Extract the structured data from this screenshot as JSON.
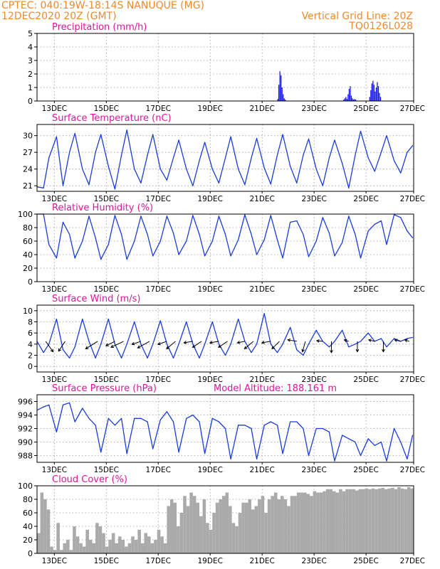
{
  "header": {
    "line1_left": "CPTEC:   040:19W-18:14S   NANUQUE (MG)",
    "line2_left": "12DEC2020 20Z (GMT)",
    "line1_right": "Vertical Grid Line: 20Z",
    "line2_right": "TQ0126L028"
  },
  "chart_data": [
    {
      "id": "precipitation",
      "type": "bar",
      "title": "Precipitation (mm/h)",
      "x_unit": "hours since 12DEC2020 20Z",
      "xlim": [
        0,
        348
      ],
      "ylim": [
        0,
        5
      ],
      "yticks": [
        0,
        1,
        2,
        3,
        4,
        5
      ],
      "grid": true,
      "color": "#1a1ae6",
      "x": [
        222,
        223,
        224,
        225,
        226,
        227,
        228,
        229,
        283,
        284,
        285,
        286,
        287,
        288,
        289,
        290,
        291,
        292,
        293,
        294,
        307,
        308,
        309,
        310,
        311,
        312,
        313,
        314,
        315,
        316,
        317
      ],
      "values": [
        0.15,
        1.2,
        2.2,
        1.9,
        1.0,
        0.5,
        0.2,
        0.1,
        0.1,
        0.2,
        0.3,
        0.15,
        0.5,
        0.9,
        1.1,
        0.4,
        0.2,
        0.1,
        0.15,
        0.1,
        0.3,
        0.8,
        1.3,
        1.5,
        1.2,
        0.7,
        1.0,
        1.4,
        1.1,
        0.6,
        0.3
      ]
    },
    {
      "id": "temperature",
      "type": "line",
      "title": "Surface Temperature (nC)",
      "xlim": [
        0,
        348
      ],
      "ylim": [
        20,
        32
      ],
      "yticks": [
        21,
        24,
        27,
        30
      ],
      "grid": true,
      "color": "#1a3cdc",
      "x": [
        0,
        6,
        11,
        18,
        24,
        30,
        35,
        42,
        48,
        54,
        59,
        66,
        72,
        78,
        83,
        90,
        96,
        102,
        107,
        114,
        120,
        126,
        131,
        138,
        144,
        150,
        155,
        162,
        168,
        174,
        179,
        186,
        192,
        198,
        203,
        210,
        216,
        222,
        227,
        234,
        240,
        246,
        251,
        258,
        264,
        270,
        275,
        282,
        288,
        294,
        299,
        306,
        312,
        318,
        323,
        330,
        336,
        342,
        347
      ],
      "values": [
        20.8,
        20.6,
        26.0,
        29.8,
        21.0,
        27.0,
        30.4,
        24.0,
        21.2,
        27.0,
        30.2,
        24.5,
        20.4,
        26.5,
        31.0,
        24.0,
        21.5,
        26.5,
        30.2,
        24.0,
        22.0,
        26.0,
        29.2,
        24.0,
        21.0,
        25.5,
        28.8,
        24.0,
        21.5,
        26.0,
        29.8,
        24.0,
        21.2,
        26.0,
        29.5,
        24.2,
        21.3,
        26.5,
        30.2,
        24.5,
        21.5,
        26.5,
        29.4,
        24.0,
        21.0,
        26.0,
        29.2,
        25.0,
        20.6,
        26.5,
        30.8,
        26.0,
        23.6,
        27.0,
        30.0,
        25.5,
        23.3,
        27.0,
        28.2
      ]
    },
    {
      "id": "humidity",
      "type": "line",
      "title": "Relative Humidity (%)",
      "xlim": [
        0,
        348
      ],
      "ylim": [
        0,
        100
      ],
      "yticks": [
        0,
        20,
        40,
        60,
        80,
        100
      ],
      "grid": true,
      "color": "#1a3cdc",
      "x": [
        0,
        6,
        11,
        18,
        24,
        30,
        35,
        42,
        48,
        54,
        59,
        66,
        72,
        78,
        83,
        90,
        96,
        102,
        107,
        114,
        120,
        126,
        131,
        138,
        144,
        150,
        155,
        162,
        168,
        174,
        179,
        186,
        192,
        198,
        203,
        210,
        216,
        222,
        227,
        234,
        240,
        246,
        251,
        258,
        264,
        270,
        275,
        282,
        288,
        294,
        299,
        306,
        312,
        318,
        323,
        330,
        336,
        342,
        347
      ],
      "values": [
        100,
        100,
        55,
        35,
        88,
        70,
        35,
        60,
        97,
        65,
        33,
        55,
        98,
        70,
        33,
        60,
        97,
        70,
        38,
        60,
        97,
        72,
        40,
        60,
        98,
        70,
        38,
        60,
        97,
        70,
        38,
        62,
        99,
        70,
        40,
        62,
        98,
        62,
        35,
        88,
        90,
        70,
        37,
        60,
        95,
        72,
        38,
        58,
        97,
        70,
        35,
        75,
        85,
        90,
        55,
        99,
        95,
        75,
        65
      ]
    },
    {
      "id": "wind",
      "type": "line",
      "title": "Surface Wind (m/s)",
      "xlim": [
        0,
        348
      ],
      "ylim": [
        -1,
        11
      ],
      "yticks": [
        0,
        2,
        4,
        6,
        8,
        10
      ],
      "grid": true,
      "color": "#1a3cdc",
      "x": [
        0,
        6,
        11,
        18,
        24,
        30,
        35,
        42,
        48,
        54,
        59,
        66,
        72,
        78,
        83,
        90,
        96,
        102,
        107,
        114,
        120,
        126,
        131,
        138,
        144,
        150,
        155,
        162,
        168,
        174,
        179,
        186,
        192,
        198,
        203,
        210,
        216,
        222,
        227,
        234,
        240,
        246,
        251,
        258,
        264,
        270,
        275,
        282,
        288,
        294,
        299,
        306,
        312,
        318,
        323,
        330,
        336,
        342,
        347
      ],
      "values": [
        4.5,
        2.5,
        4.0,
        8.5,
        3.0,
        1.5,
        3.5,
        8.5,
        4.5,
        1.5,
        4.0,
        8.5,
        4.0,
        1.5,
        4.0,
        8.0,
        4.0,
        1.5,
        4.0,
        8.2,
        4.0,
        1.5,
        4.0,
        8.0,
        4.0,
        1.5,
        4.0,
        8.0,
        4.0,
        2.0,
        4.0,
        8.5,
        4.5,
        2.5,
        4.0,
        9.5,
        4.0,
        2.5,
        4.0,
        7.0,
        3.0,
        2.0,
        4.0,
        6.5,
        4.5,
        3.5,
        4.5,
        6.5,
        3.5,
        4.0,
        4.5,
        6.0,
        4.5,
        5.0,
        3.5,
        5.0,
        4.5,
        5.0,
        5.2
      ],
      "arrows": [
        {
          "x": 8,
          "u": 2.5,
          "v": -3.5
        },
        {
          "x": 26,
          "u": -2.2,
          "v": -3.3
        },
        {
          "x": 56,
          "u": -4.0,
          "v": -2.5
        },
        {
          "x": 72,
          "u": -3.0,
          "v": -1.5
        },
        {
          "x": 80,
          "u": -4.2,
          "v": -2.0
        },
        {
          "x": 96,
          "u": -3.0,
          "v": -1.0
        },
        {
          "x": 104,
          "u": -4.0,
          "v": -2.2
        },
        {
          "x": 120,
          "u": -3.0,
          "v": -1.0
        },
        {
          "x": 128,
          "u": -3.0,
          "v": -2.5
        },
        {
          "x": 144,
          "u": -3.0,
          "v": -0.5
        },
        {
          "x": 152,
          "u": -3.0,
          "v": -2.0
        },
        {
          "x": 168,
          "u": -3.0,
          "v": -0.5
        },
        {
          "x": 176,
          "u": -3.0,
          "v": -2.0
        },
        {
          "x": 192,
          "u": -2.5,
          "v": -0.5
        },
        {
          "x": 200,
          "u": -3.0,
          "v": -2.5
        },
        {
          "x": 216,
          "u": -3.0,
          "v": -0.5
        },
        {
          "x": 224,
          "u": -2.5,
          "v": -2.5
        },
        {
          "x": 240,
          "u": -3.0,
          "v": 0.5
        },
        {
          "x": 248,
          "u": -1.0,
          "v": -3.5
        },
        {
          "x": 264,
          "u": -2.0,
          "v": 0.2
        },
        {
          "x": 272,
          "u": 0.0,
          "v": -3.8
        },
        {
          "x": 288,
          "u": -1.5,
          "v": 0.5
        },
        {
          "x": 296,
          "u": 0.0,
          "v": -3.5
        },
        {
          "x": 312,
          "u": -2.0,
          "v": 0.5
        },
        {
          "x": 320,
          "u": 0.0,
          "v": -3.5
        },
        {
          "x": 336,
          "u": -2.0,
          "v": 0.5
        },
        {
          "x": 344,
          "u": -1.5,
          "v": 0.5
        }
      ]
    },
    {
      "id": "pressure",
      "type": "line",
      "title": "Surface Pressure (hPa)",
      "annotation": "Model Altitude: 188.161 m",
      "xlim": [
        0,
        348
      ],
      "ylim": [
        987,
        997
      ],
      "yticks": [
        988,
        990,
        992,
        994,
        996
      ],
      "grid": true,
      "color": "#1a3cdc",
      "x": [
        0,
        6,
        11,
        18,
        24,
        30,
        35,
        42,
        48,
        54,
        59,
        66,
        72,
        78,
        83,
        90,
        96,
        102,
        107,
        114,
        120,
        126,
        131,
        138,
        144,
        150,
        155,
        162,
        168,
        174,
        179,
        186,
        192,
        198,
        203,
        210,
        216,
        222,
        227,
        234,
        240,
        246,
        251,
        258,
        264,
        270,
        275,
        282,
        288,
        294,
        299,
        306,
        312,
        318,
        323,
        330,
        336,
        342,
        347
      ],
      "values": [
        994.7,
        995.2,
        995.5,
        991.5,
        995.5,
        995.8,
        993.0,
        995.0,
        993.5,
        992.5,
        988.5,
        993.5,
        992.5,
        993.5,
        988.3,
        993.5,
        993.5,
        993.0,
        989.0,
        993.3,
        994.5,
        993.0,
        988.5,
        993.5,
        994.0,
        993.0,
        988.3,
        993.5,
        993.0,
        992.0,
        987.5,
        992.5,
        992.5,
        992.0,
        987.5,
        992.5,
        993.0,
        992.5,
        988.3,
        993.0,
        993.0,
        992.0,
        988.0,
        992.0,
        992.0,
        991.5,
        987.2,
        991.0,
        990.5,
        990.0,
        988.0,
        990.5,
        989.5,
        990.0,
        987.2,
        992.0,
        990.0,
        987.5,
        991.0
      ]
    },
    {
      "id": "cloud",
      "type": "bar",
      "title": "Cloud Cover (%)",
      "xlim": [
        0,
        348
      ],
      "ylim": [
        0,
        100
      ],
      "yticks": [
        0,
        20,
        40,
        60,
        80,
        100
      ],
      "grid": true,
      "color": "#aaaaaa",
      "x": [
        0,
        3,
        6,
        9,
        12,
        15,
        18,
        21,
        24,
        27,
        30,
        33,
        36,
        39,
        42,
        45,
        48,
        51,
        54,
        57,
        60,
        63,
        66,
        69,
        72,
        75,
        78,
        81,
        84,
        87,
        90,
        93,
        96,
        99,
        102,
        105,
        108,
        111,
        114,
        117,
        120,
        123,
        126,
        129,
        132,
        135,
        138,
        141,
        144,
        147,
        150,
        153,
        156,
        159,
        162,
        165,
        168,
        171,
        174,
        177,
        180,
        183,
        186,
        189,
        192,
        195,
        198,
        201,
        204,
        207,
        210,
        213,
        216,
        219,
        222,
        225,
        228,
        231,
        234,
        237,
        240,
        243,
        246,
        249,
        252,
        255,
        258,
        261,
        264,
        267,
        270,
        273,
        276,
        279,
        282,
        285,
        288,
        291,
        294,
        297,
        300,
        303,
        306,
        309,
        312,
        315,
        318,
        321,
        324,
        327,
        330,
        333,
        336,
        339,
        342,
        345
      ],
      "values": [
        30,
        90,
        80,
        65,
        10,
        5,
        45,
        5,
        15,
        20,
        5,
        40,
        25,
        15,
        10,
        35,
        20,
        15,
        45,
        40,
        30,
        10,
        20,
        30,
        15,
        25,
        20,
        10,
        15,
        25,
        20,
        35,
        15,
        30,
        25,
        15,
        20,
        35,
        25,
        15,
        70,
        80,
        75,
        40,
        60,
        85,
        70,
        90,
        85,
        75,
        55,
        80,
        45,
        35,
        60,
        75,
        80,
        85,
        90,
        70,
        45,
        40,
        60,
        75,
        75,
        80,
        65,
        70,
        80,
        85,
        60,
        80,
        85,
        90,
        80,
        85,
        80,
        70,
        85,
        85,
        90,
        90,
        90,
        88,
        85,
        92,
        90,
        90,
        92,
        95,
        95,
        92,
        90,
        95,
        92,
        95,
        95,
        95,
        93,
        95,
        95,
        96,
        95,
        96,
        95,
        96,
        97,
        95,
        96,
        97,
        95,
        98,
        96,
        95,
        98,
        96
      ]
    }
  ],
  "xaxis": {
    "tick_hours": [
      16,
      64,
      112,
      160,
      208,
      256,
      304,
      348
    ],
    "tick_labels": [
      "13DEC",
      "15DEC",
      "17DEC",
      "19DEC",
      "21DEC",
      "23DEC",
      "25DEC",
      "27DEC"
    ]
  },
  "colors": {
    "header": "#ee8a2c",
    "title": "#e0149b",
    "line": "#1a3cdc",
    "precip": "#1a1ae6",
    "cloud": "#aaaaaa"
  }
}
